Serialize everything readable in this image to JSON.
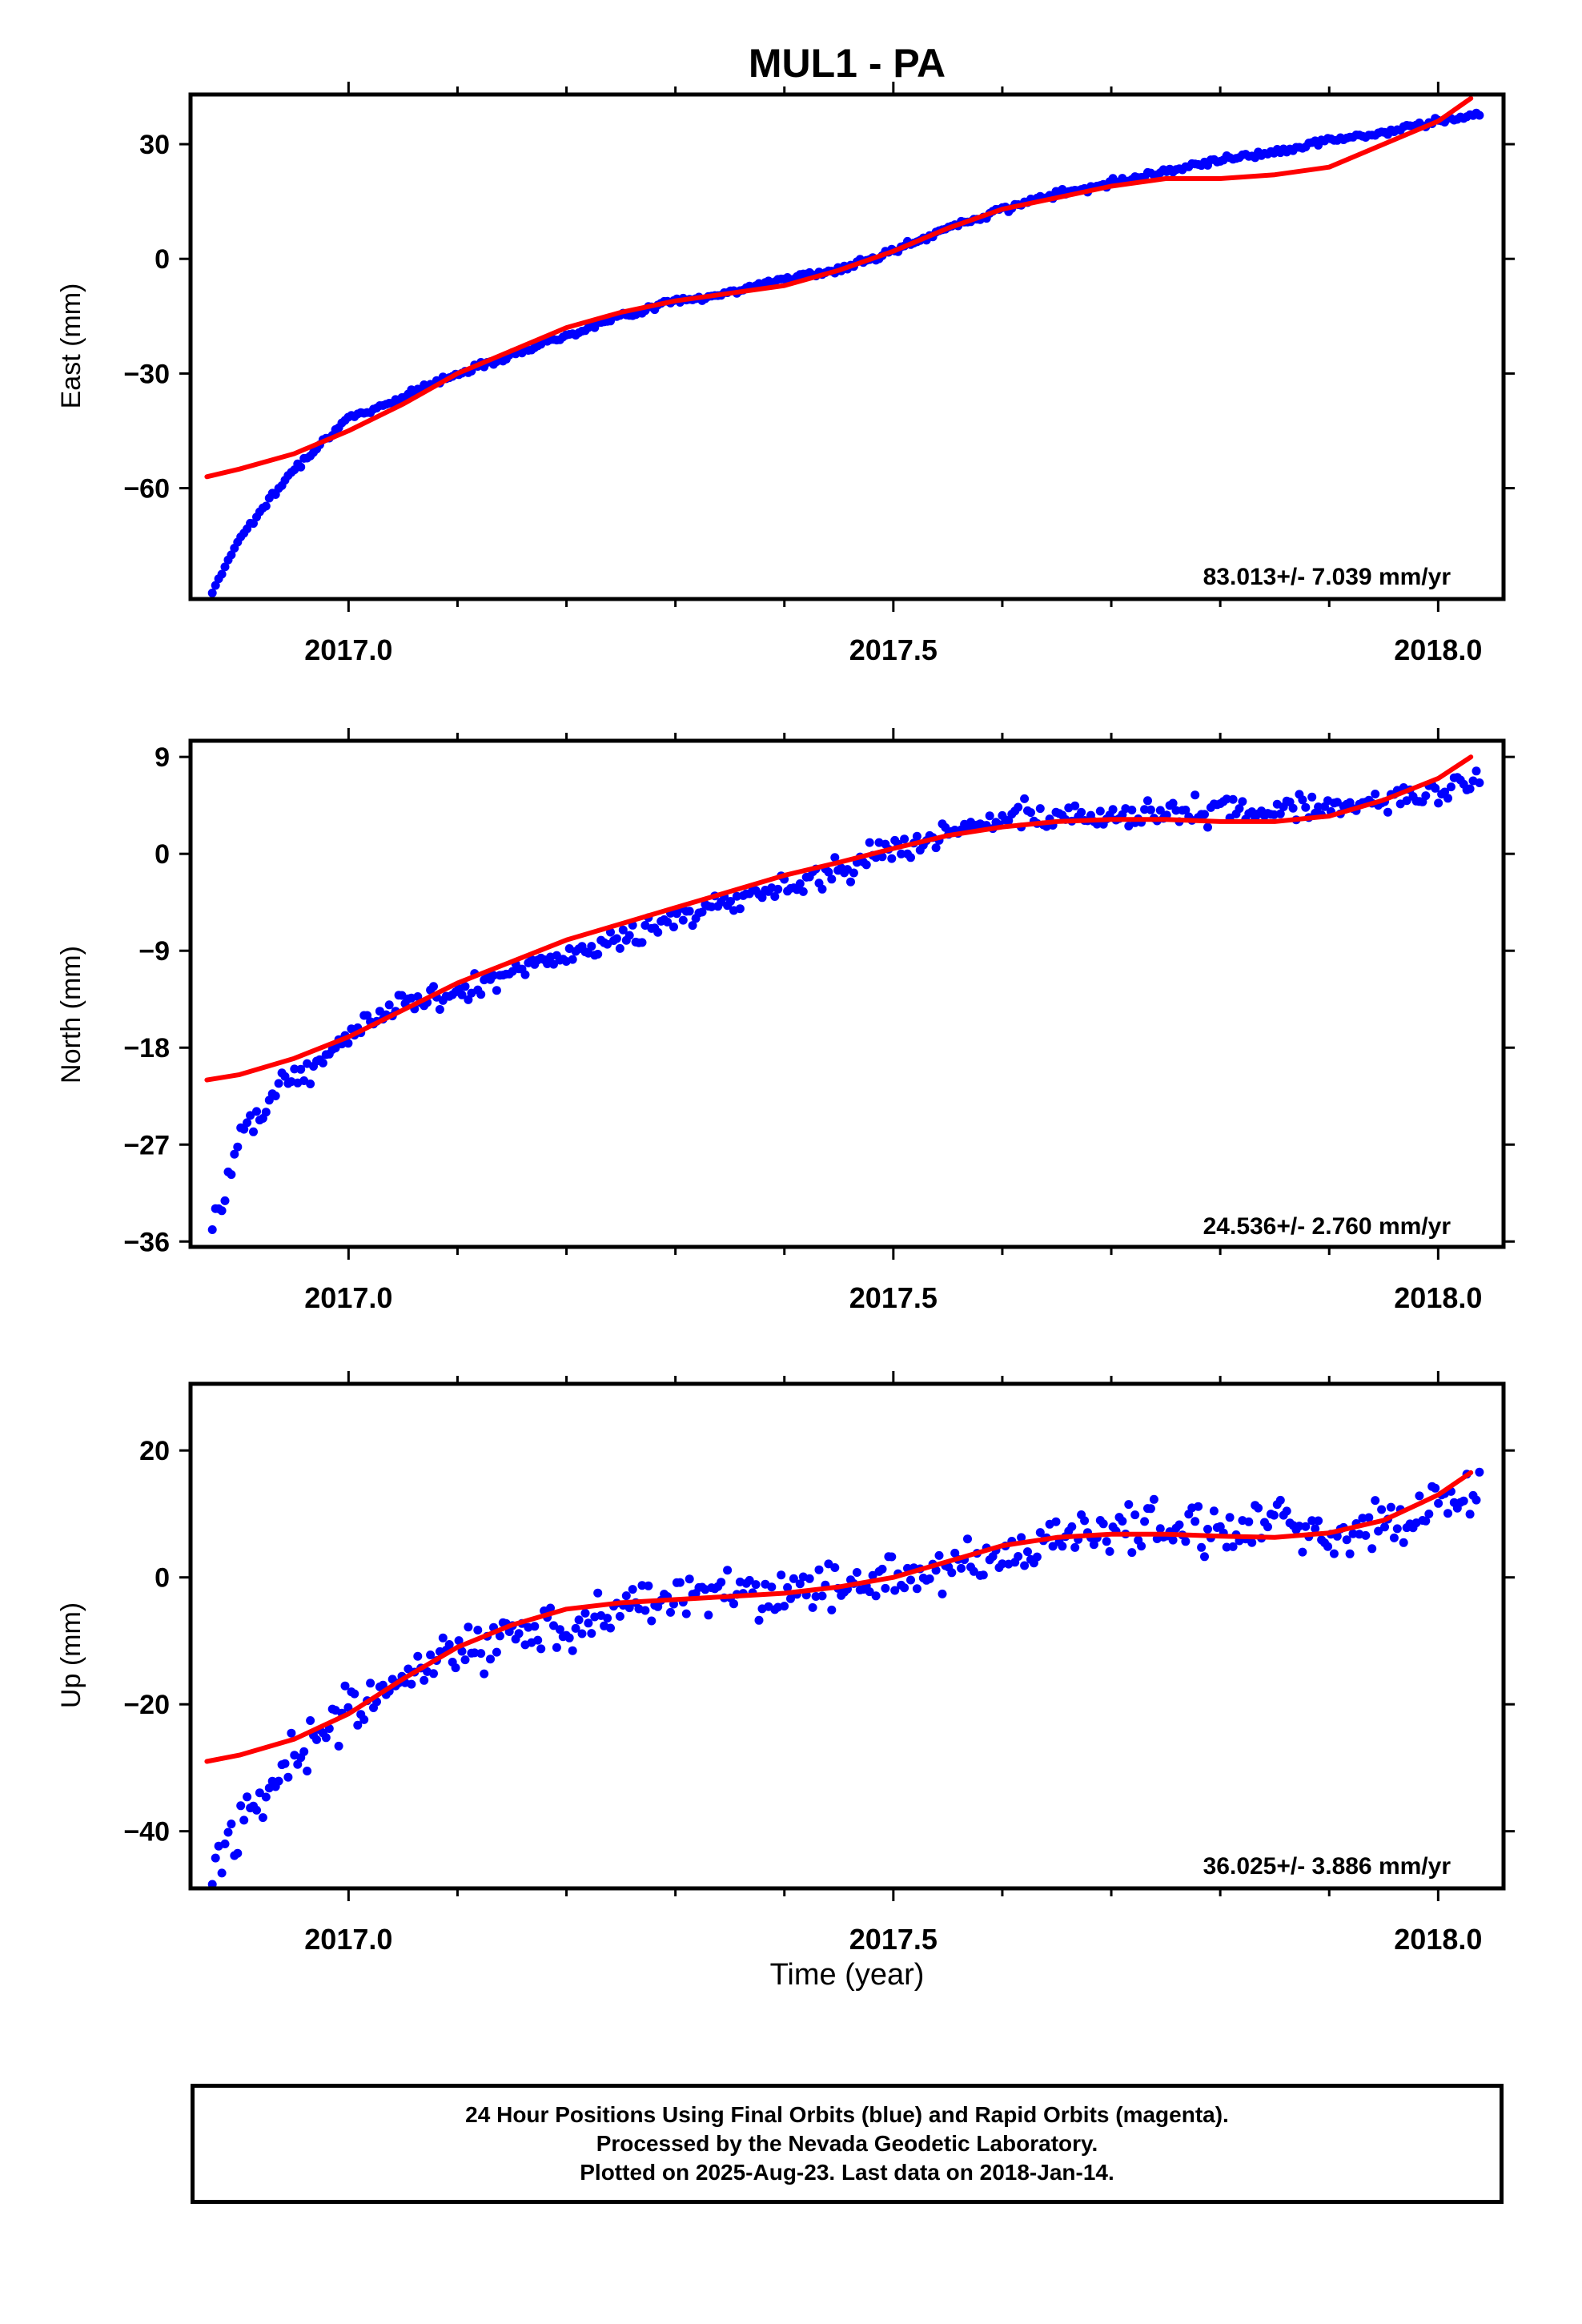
{
  "title": "MUL1 - PA",
  "xlabel": "Time (year)",
  "footer": [
    "24 Hour Positions Using Final Orbits (blue) and Rapid Orbits (magenta).",
    "Processed by the Nevada Geodetic Laboratory.",
    "Plotted on 2025-Aug-23. Last data on 2018-Jan-14."
  ],
  "colors": {
    "points": "#0000ff",
    "fit": "#ff0000",
    "frame": "#000000"
  },
  "chart_data": [
    {
      "type": "scatter",
      "ylabel": "East (mm)",
      "rate": "83.013+/- 7.039 mm/yr",
      "xlim": [
        2016.855,
        2018.06
      ],
      "ylim": [
        -89,
        43
      ],
      "xticks": [
        "2017.0",
        "2017.5",
        "2018.0"
      ],
      "yticks": [
        30,
        0,
        -30,
        -60
      ],
      "series": [
        {
          "role": "data",
          "x": [
            2016.875,
            2016.9,
            2016.925,
            2016.95,
            2016.975,
            2017.0,
            2017.05,
            2017.1,
            2017.15,
            2017.2,
            2017.25,
            2017.3,
            2017.35,
            2017.4,
            2017.45,
            2017.5,
            2017.55,
            2017.6,
            2017.65,
            2017.7,
            2017.75,
            2017.8,
            2017.85,
            2017.9,
            2017.95,
            2018.0,
            2018.04
          ],
          "y": [
            -87,
            -73,
            -64,
            -55,
            -48,
            -42,
            -36,
            -30,
            -25,
            -20,
            -15,
            -11,
            -9,
            -5,
            -3,
            2,
            8,
            13,
            17,
            20,
            23,
            26,
            28,
            31,
            33,
            36,
            38
          ]
        },
        {
          "role": "fit",
          "x": [
            2016.87,
            2016.9,
            2016.95,
            2017.0,
            2017.05,
            2017.1,
            2017.15,
            2017.2,
            2017.25,
            2017.3,
            2017.35,
            2017.4,
            2017.45,
            2017.5,
            2017.55,
            2017.6,
            2017.65,
            2017.7,
            2017.75,
            2017.8,
            2017.85,
            2017.9,
            2017.95,
            2018.0,
            2018.03
          ],
          "y": [
            -57,
            -55,
            -51,
            -45,
            -38,
            -30,
            -24,
            -18,
            -14,
            -11,
            -9,
            -7,
            -3,
            2,
            8,
            13,
            16,
            19,
            21,
            21,
            22,
            24,
            30,
            36,
            42
          ]
        }
      ]
    },
    {
      "type": "scatter",
      "ylabel": "North (mm)",
      "rate": "24.536+/- 2.760 mm/yr",
      "xlim": [
        2016.855,
        2018.06
      ],
      "ylim": [
        -36.5,
        10.5
      ],
      "xticks": [
        "2017.0",
        "2017.5",
        "2018.0"
      ],
      "yticks": [
        9,
        0,
        -9,
        -18,
        -27,
        -36
      ],
      "series": [
        {
          "role": "data",
          "x": [
            2016.875,
            2016.9,
            2016.925,
            2016.95,
            2016.975,
            2017.0,
            2017.05,
            2017.1,
            2017.15,
            2017.2,
            2017.25,
            2017.3,
            2017.35,
            2017.4,
            2017.45,
            2017.5,
            2017.55,
            2017.6,
            2017.65,
            2017.7,
            2017.75,
            2017.8,
            2017.85,
            2017.9,
            2017.95,
            2018.0,
            2018.04
          ],
          "y": [
            -35.5,
            -26,
            -23,
            -20.5,
            -19,
            -16.5,
            -14,
            -13,
            -11,
            -9.5,
            -8,
            -6,
            -4.5,
            -3,
            -1.5,
            0.5,
            2,
            3,
            3.5,
            3.5,
            4,
            4,
            4,
            4.5,
            5,
            5.5,
            7
          ]
        },
        {
          "role": "fit",
          "x": [
            2016.87,
            2016.9,
            2016.95,
            2017.0,
            2017.05,
            2017.1,
            2017.15,
            2017.2,
            2017.25,
            2017.3,
            2017.35,
            2017.4,
            2017.45,
            2017.5,
            2017.55,
            2017.6,
            2017.65,
            2017.7,
            2017.75,
            2017.8,
            2017.85,
            2017.9,
            2017.95,
            2018.0,
            2018.03
          ],
          "y": [
            -21,
            -20.5,
            -19,
            -17,
            -14.5,
            -12,
            -10,
            -8,
            -6.5,
            -5,
            -3.5,
            -2,
            -0.8,
            0.5,
            1.7,
            2.5,
            3,
            3.2,
            3.2,
            3,
            3,
            3.5,
            5,
            7,
            9
          ]
        }
      ]
    },
    {
      "type": "scatter",
      "ylabel": "Up (mm)",
      "rate": "36.025+/- 3.886 mm/yr",
      "xlim": [
        2016.855,
        2018.06
      ],
      "ylim": [
        -49,
        30.5
      ],
      "xticks": [
        "2017.0",
        "2017.5",
        "2018.0"
      ],
      "yticks": [
        20,
        0,
        -20,
        -40
      ],
      "series": [
        {
          "role": "data",
          "x": [
            2016.875,
            2016.9,
            2016.925,
            2016.95,
            2016.975,
            2017.0,
            2017.05,
            2017.1,
            2017.15,
            2017.2,
            2017.25,
            2017.3,
            2017.35,
            2017.4,
            2017.45,
            2017.5,
            2017.55,
            2017.6,
            2017.65,
            2017.7,
            2017.75,
            2017.8,
            2017.85,
            2017.9,
            2017.95,
            2018.0,
            2018.04
          ],
          "y": [
            -47,
            -39,
            -33,
            -28,
            -25,
            -21,
            -16,
            -12,
            -9,
            -7,
            -5,
            -3,
            -2,
            -2.5,
            -1,
            0,
            2,
            3.5,
            6,
            8,
            8,
            7,
            9,
            7,
            8,
            12,
            14
          ]
        },
        {
          "role": "fit",
          "x": [
            2016.87,
            2016.9,
            2016.95,
            2017.0,
            2017.05,
            2017.1,
            2017.15,
            2017.2,
            2017.25,
            2017.3,
            2017.35,
            2017.4,
            2017.45,
            2017.5,
            2017.55,
            2017.6,
            2017.65,
            2017.7,
            2017.75,
            2017.8,
            2017.85,
            2017.9,
            2017.95,
            2018.0,
            2018.03
          ],
          "y": [
            -29,
            -28,
            -25.5,
            -21.5,
            -16,
            -11,
            -7.5,
            -5,
            -4,
            -3.5,
            -3,
            -2.5,
            -1.5,
            0,
            2.5,
            5,
            6.3,
            6.8,
            6.8,
            6.5,
            6.3,
            7,
            9,
            13,
            16.5
          ]
        }
      ]
    }
  ]
}
